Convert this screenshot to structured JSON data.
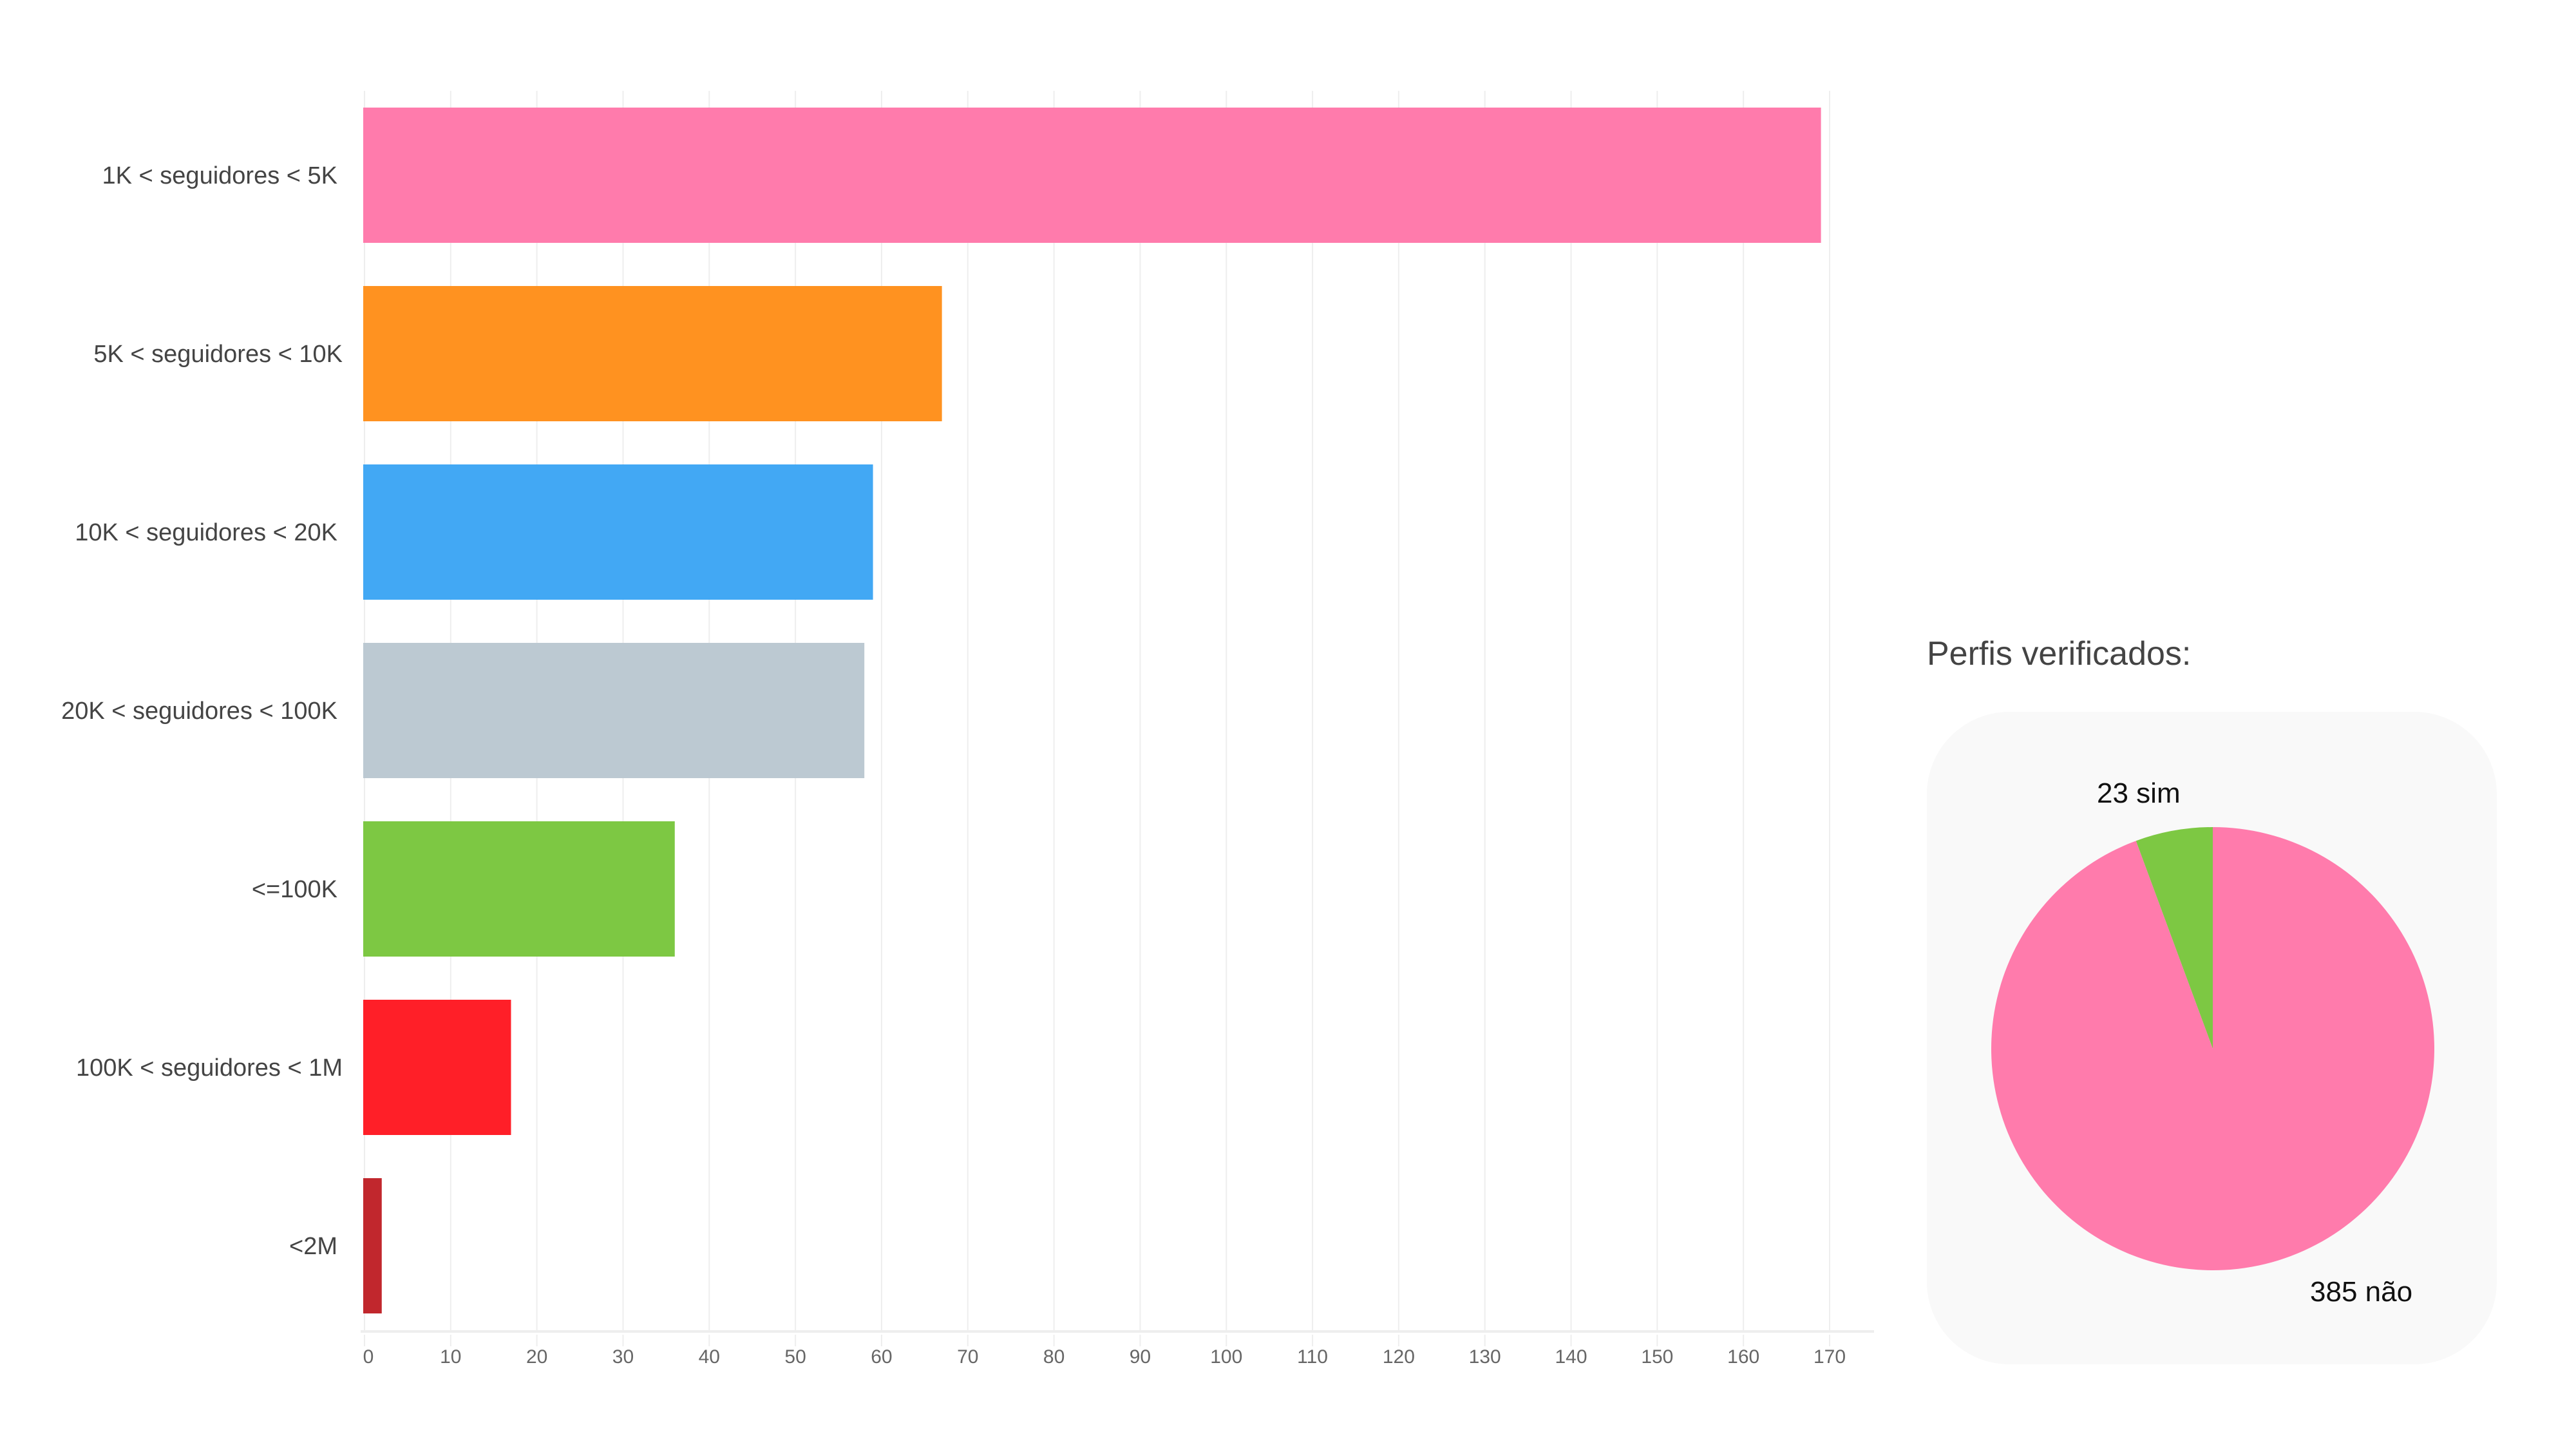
{
  "chart_data": [
    {
      "type": "bar",
      "orientation": "horizontal",
      "categories": [
        "1K < seguidores < 5K",
        "5K < seguidores < 10K",
        "10K < seguidores < 20K",
        "20K < seguidores < 100K",
        "<=100K",
        "100K < seguidores < 1M",
        "<2M"
      ],
      "values": [
        169,
        67,
        59,
        58,
        36,
        17,
        2
      ],
      "colors": [
        "#ff7bac",
        "#ff9220",
        "#42a8f4",
        "#bcc9d2",
        "#7dc843",
        "#ff1f28",
        "#c1272d"
      ],
      "xlim": [
        0,
        170
      ],
      "xticks": [
        "0",
        "10",
        "20",
        "30",
        "40",
        "50",
        "60",
        "70",
        "80",
        "90",
        "100",
        "110",
        "120",
        "130",
        "140",
        "150",
        "160",
        "170"
      ],
      "grid": true
    },
    {
      "type": "pie",
      "title": "Perfis verificados:",
      "slices": [
        {
          "label": "23 sim",
          "value": 23,
          "color": "#7dc843"
        },
        {
          "label": "385 não",
          "value": 385,
          "color": "#ff7bac"
        }
      ]
    }
  ]
}
